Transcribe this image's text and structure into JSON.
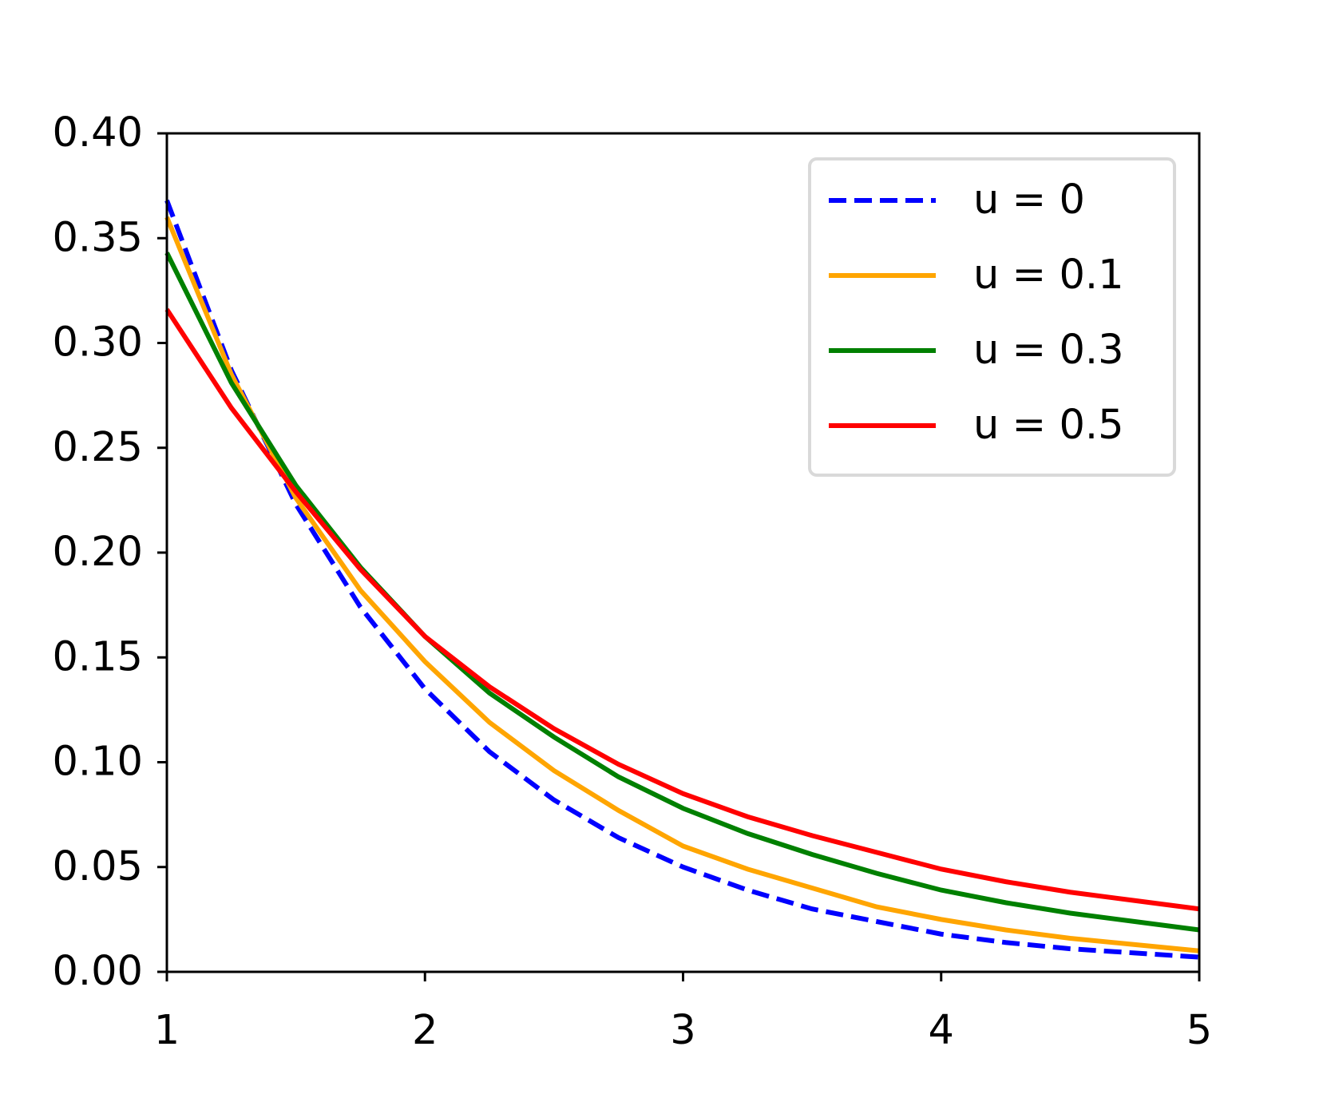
{
  "chart_data": {
    "type": "line",
    "x": [
      1,
      1.25,
      1.5,
      1.75,
      2,
      2.25,
      2.5,
      2.75,
      3,
      3.25,
      3.5,
      3.75,
      4,
      4.25,
      4.5,
      4.75,
      5
    ],
    "series": [
      {
        "name": "u = 0",
        "color": "#0000ff",
        "linestyle": "dashed",
        "values": [
          0.368,
          0.287,
          0.223,
          0.174,
          0.135,
          0.105,
          0.082,
          0.064,
          0.05,
          0.039,
          0.03,
          0.024,
          0.018,
          0.014,
          0.011,
          0.009,
          0.007
        ]
      },
      {
        "name": "u = 0.1",
        "color": "#ffa500",
        "linestyle": "solid",
        "values": [
          0.36,
          0.285,
          0.226,
          0.182,
          0.148,
          0.119,
          0.096,
          0.077,
          0.06,
          0.049,
          0.04,
          0.031,
          0.025,
          0.02,
          0.016,
          0.013,
          0.01
        ]
      },
      {
        "name": "u = 0.3",
        "color": "#008000",
        "linestyle": "solid",
        "values": [
          0.343,
          0.281,
          0.232,
          0.193,
          0.16,
          0.133,
          0.112,
          0.093,
          0.078,
          0.066,
          0.056,
          0.047,
          0.039,
          0.033,
          0.028,
          0.024,
          0.02
        ]
      },
      {
        "name": "u = 0.5",
        "color": "#ff0000",
        "linestyle": "solid",
        "values": [
          0.316,
          0.269,
          0.229,
          0.192,
          0.16,
          0.136,
          0.116,
          0.099,
          0.085,
          0.074,
          0.065,
          0.057,
          0.049,
          0.043,
          0.038,
          0.034,
          0.03
        ]
      }
    ],
    "xlim": [
      1,
      5
    ],
    "xticks": [
      1,
      2,
      3,
      4,
      5
    ],
    "ylim": [
      0,
      0.4
    ],
    "yticks": [
      {
        "value": 0,
        "label": "0.00"
      },
      {
        "value": 0.05,
        "label": "0.05"
      },
      {
        "value": 0.1,
        "label": "0.10"
      },
      {
        "value": 0.15,
        "label": "0.15"
      },
      {
        "value": 0.2,
        "label": "0.20"
      },
      {
        "value": 0.25,
        "label": "0.25"
      },
      {
        "value": 0.3,
        "label": "0.30"
      },
      {
        "value": 0.35,
        "label": "0.35"
      },
      {
        "value": 0.4,
        "label": "0.40"
      }
    ],
    "grid": false,
    "legend": "upper right"
  }
}
